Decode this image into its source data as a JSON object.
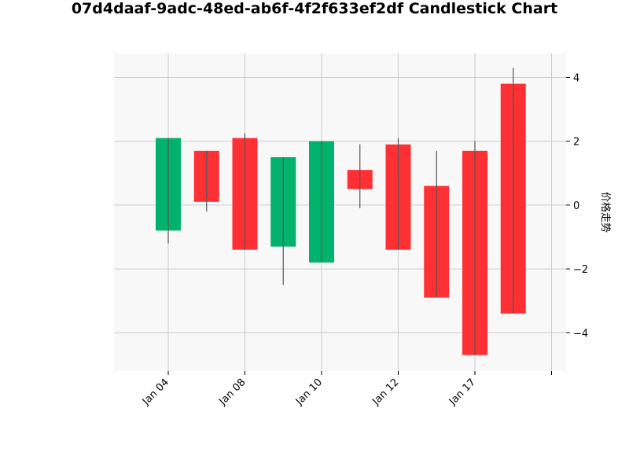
{
  "chart_data": {
    "type": "candlestick",
    "title": "07d4daaf-9adc-48ed-ab6f-4f2f633ef2df Candlestick Chart",
    "xlabel": "",
    "ylabel": "价格走势",
    "ylim": [
      -5.2,
      4.75
    ],
    "yticks": [
      -4,
      -2,
      0,
      2,
      4
    ],
    "ytick_labels": [
      "−4",
      "−2",
      "0",
      "2",
      "4"
    ],
    "xtick_labels": [
      "Jan 04",
      "Jan 08",
      "Jan 10",
      "Jan 12",
      "Jan 17",
      ""
    ],
    "grid": true,
    "colors": {
      "up": "#00b26b",
      "down": "#ff3034",
      "wick": "#555555",
      "grid": "#cccccc",
      "plot_bg": "#f8f8f8"
    },
    "candles": [
      {
        "open": -0.8,
        "high": 2.1,
        "low": -1.2,
        "close": 2.1
      },
      {
        "open": 1.7,
        "high": 1.7,
        "low": -0.2,
        "close": 0.1
      },
      {
        "open": 2.1,
        "high": 2.25,
        "low": -1.4,
        "close": -1.4
      },
      {
        "open": -1.3,
        "high": 1.5,
        "low": -2.5,
        "close": 1.5
      },
      {
        "open": -1.8,
        "high": 2.0,
        "low": -1.8,
        "close": 2.0
      },
      {
        "open": 1.1,
        "high": 1.9,
        "low": -0.1,
        "close": 0.5
      },
      {
        "open": 1.9,
        "high": 2.1,
        "low": -1.4,
        "close": -1.4
      },
      {
        "open": 0.6,
        "high": 1.7,
        "low": -2.9,
        "close": -2.9
      },
      {
        "open": 1.7,
        "high": 2.0,
        "low": -4.7,
        "close": -4.7
      },
      {
        "open": 3.8,
        "high": 4.3,
        "low": -3.4,
        "close": -3.4
      }
    ]
  }
}
